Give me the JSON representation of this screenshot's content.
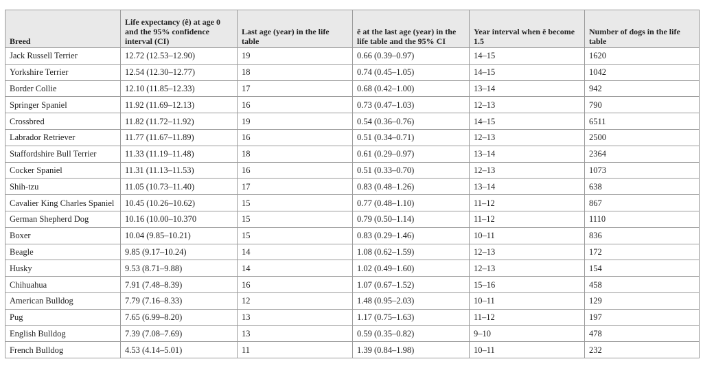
{
  "table": {
    "header": [
      "Breed",
      "Life expectancy (ê) at age 0 and the 95% confidence interval (CI)",
      "Last age (year) in the life table",
      "ê at the last age (year) in the life table and the 95% CI",
      "Year interval when ê become 1.5",
      "Number of dogs in the life table"
    ],
    "rows": [
      [
        "Jack Russell Terrier",
        "12.72 (12.53–12.90)",
        "19",
        "0.66 (0.39–0.97)",
        "14–15",
        "1620"
      ],
      [
        "Yorkshire Terrier",
        "12.54 (12.30–12.77)",
        "18",
        "0.74 (0.45–1.05)",
        "14–15",
        "1042"
      ],
      [
        "Border Collie",
        "12.10 (11.85–12.33)",
        "17",
        "0.68 (0.42–1.00)",
        "13–14",
        "942"
      ],
      [
        "Springer Spaniel",
        "11.92 (11.69–12.13)",
        "16",
        "0.73 (0.47–1.03)",
        "12–13",
        "790"
      ],
      [
        "Crossbred",
        "11.82 (11.72–11.92)",
        "19",
        "0.54 (0.36–0.76)",
        "14–15",
        "6511"
      ],
      [
        "Labrador Retriever",
        "11.77 (11.67–11.89)",
        "16",
        "0.51 (0.34–0.71)",
        "12–13",
        "2500"
      ],
      [
        "Staffordshire Bull Terrier",
        "11.33 (11.19–11.48)",
        "18",
        "0.61 (0.29–0.97)",
        "13–14",
        "2364"
      ],
      [
        "Cocker Spaniel",
        "11.31 (11.13–11.53)",
        "16",
        "0.51 (0.33–0.70)",
        "12–13",
        "1073"
      ],
      [
        "Shih-tzu",
        "11.05 (10.73–11.40)",
        "17",
        "0.83 (0.48–1.26)",
        "13–14",
        "638"
      ],
      [
        "Cavalier King Charles Spaniel",
        "10.45 (10.26–10.62)",
        "15",
        "0.77 (0.48–1.10)",
        "11–12",
        "867"
      ],
      [
        "German Shepherd Dog",
        "10.16 (10.00–10.370",
        "15",
        "0.79 (0.50–1.14)",
        "11–12",
        "1110"
      ],
      [
        "Boxer",
        "10.04 (9.85–10.21)",
        "15",
        "0.83 (0.29–1.46)",
        "10–11",
        "836"
      ],
      [
        "Beagle",
        "9.85 (9.17–10.24)",
        "14",
        "1.08 (0.62–1.59)",
        "12–13",
        "172"
      ],
      [
        "Husky",
        "9.53 (8.71–9.88)",
        "14",
        "1.02 (0.49–1.60)",
        "12–13",
        "154"
      ],
      [
        "Chihuahua",
        "7.91 (7.48–8.39)",
        "16",
        "1.07 (0.67–1.52)",
        "15–16",
        "458"
      ],
      [
        "American Bulldog",
        "7.79 (7.16–8.33)",
        "12",
        "1.48 (0.95–2.03)",
        "10–11",
        "129"
      ],
      [
        "Pug",
        "7.65 (6.99–8.20)",
        "13",
        "1.17 (0.75–1.63)",
        "11–12",
        "197"
      ],
      [
        "English Bulldog",
        "7.39 (7.08–7.69)",
        "13",
        "0.59 (0.35–0.82)",
        "9–10",
        "478"
      ],
      [
        "French Bulldog",
        "4.53 (4.14–5.01)",
        "11",
        "1.39 (0.84–1.98)",
        "10–11",
        "232"
      ]
    ]
  }
}
